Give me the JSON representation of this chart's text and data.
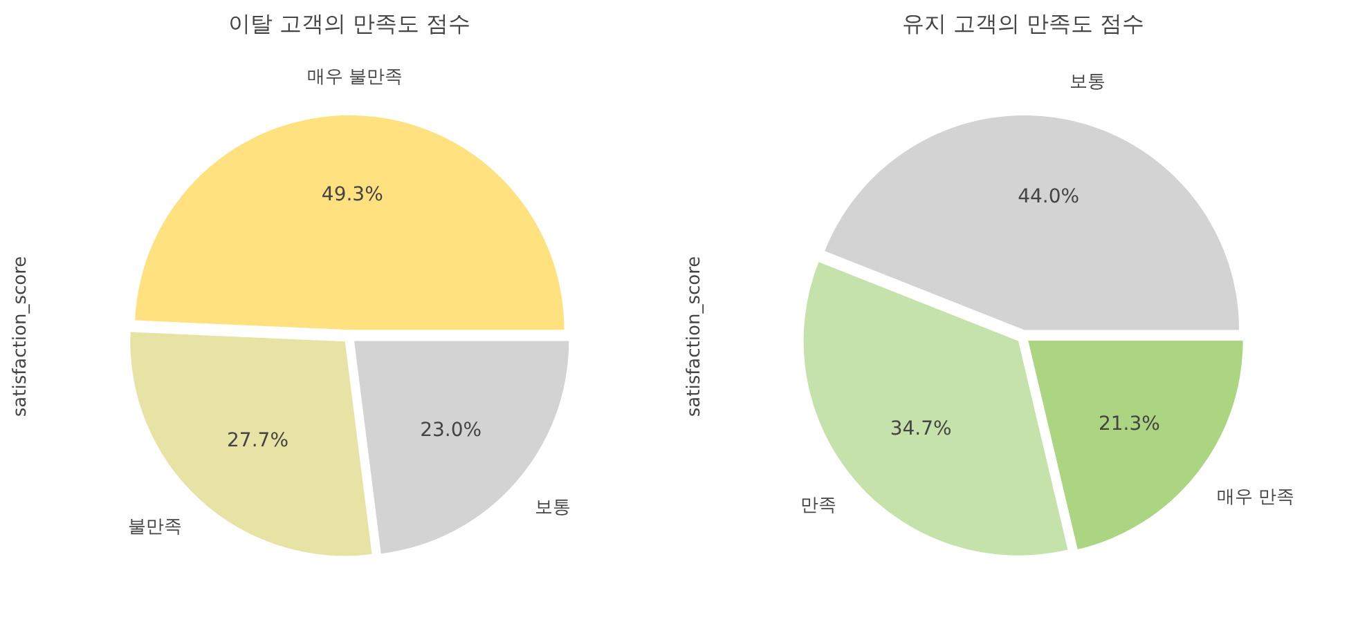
{
  "chart_data": [
    {
      "type": "pie",
      "title": "이탈 고객의 만족도 점수",
      "ylabel": "satisfaction_score",
      "categories": [
        "매우 불만족",
        "불만족",
        "보통"
      ],
      "values": [
        49.3,
        27.7,
        23.0
      ],
      "colors": [
        "#ffe17f",
        "#e7e3a5",
        "#d3d3d3"
      ],
      "value_labels": [
        "49.3%",
        "27.7%",
        "23.0%"
      ],
      "legend": false
    },
    {
      "type": "pie",
      "title": "유지 고객의 만족도 점수",
      "ylabel": "satisfaction_score",
      "categories": [
        "보통",
        "만족",
        "매우 만족"
      ],
      "values": [
        44.0,
        34.7,
        21.3
      ],
      "colors": [
        "#d3d3d3",
        "#c6e2ab",
        "#acd581"
      ],
      "value_labels": [
        "44.0%",
        "34.7%",
        "21.3%"
      ],
      "legend": false
    }
  ]
}
